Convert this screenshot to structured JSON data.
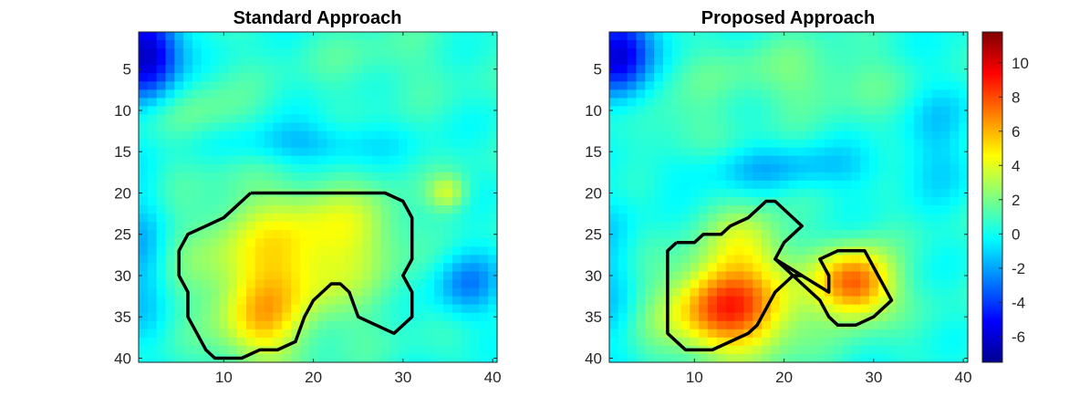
{
  "chart_data": [
    {
      "type": "heatmap",
      "title": "Standard Approach",
      "xlabel": "",
      "ylabel": "",
      "xlim": [
        0.5,
        40.5
      ],
      "ylim": [
        0.5,
        40.5
      ],
      "y_reversed": true,
      "xticks": [
        10,
        20,
        30,
        40
      ],
      "yticks": [
        5,
        10,
        15,
        20,
        25,
        30,
        35,
        40
      ],
      "grid": false,
      "blobs": [
        {
          "x": 1.5,
          "y": 3,
          "sx": 2.5,
          "sy": 4,
          "a": -7
        },
        {
          "x": 1,
          "y": 28,
          "sx": 2,
          "sy": 7,
          "a": -2
        },
        {
          "x": 18,
          "y": 14,
          "sx": 7,
          "sy": 2,
          "a": -2.2
        },
        {
          "x": 37,
          "y": 31,
          "sx": 2.5,
          "sy": 3,
          "a": -3
        },
        {
          "x": 17,
          "y": 28,
          "sx": 7,
          "sy": 6,
          "a": 4.5
        },
        {
          "x": 14,
          "y": 36,
          "sx": 3,
          "sy": 4,
          "a": 3.5
        },
        {
          "x": 25,
          "y": 24,
          "sx": 4,
          "sy": 3,
          "a": 1.5
        },
        {
          "x": 35,
          "y": 20,
          "sx": 1.5,
          "sy": 1.5,
          "a": 3
        },
        {
          "x": 8,
          "y": 11,
          "sx": 4,
          "sy": 3,
          "a": 1.5
        },
        {
          "x": 28,
          "y": 4,
          "sx": 6,
          "sy": 3,
          "a": 0.8
        }
      ],
      "contours": [
        [
          [
            13,
            20
          ],
          [
            28,
            20
          ],
          [
            30,
            21
          ],
          [
            31,
            23
          ],
          [
            31,
            28
          ],
          [
            30,
            30
          ],
          [
            31,
            32
          ],
          [
            31,
            35
          ],
          [
            29,
            37
          ],
          [
            27,
            36
          ],
          [
            25,
            35
          ],
          [
            24,
            32
          ],
          [
            23,
            31
          ],
          [
            22,
            31
          ],
          [
            20,
            33
          ],
          [
            19,
            35
          ],
          [
            18,
            38
          ],
          [
            16,
            39
          ],
          [
            14,
            39
          ],
          [
            12,
            40
          ],
          [
            9,
            40
          ],
          [
            8,
            39
          ],
          [
            7,
            37
          ],
          [
            6,
            35
          ],
          [
            6,
            32
          ],
          [
            5,
            30
          ],
          [
            5,
            27
          ],
          [
            6,
            25
          ],
          [
            8,
            24
          ],
          [
            10,
            23
          ],
          [
            12,
            21
          ],
          [
            13,
            20
          ]
        ]
      ]
    },
    {
      "type": "heatmap",
      "title": "Proposed Approach",
      "xlabel": "",
      "ylabel": "",
      "xlim": [
        0.5,
        40.5
      ],
      "ylim": [
        0.5,
        40.5
      ],
      "y_reversed": true,
      "xticks": [
        10,
        20,
        30,
        40
      ],
      "yticks": [
        5,
        10,
        15,
        20,
        25,
        30,
        35,
        40
      ],
      "grid": false,
      "blobs": [
        {
          "x": 1.5,
          "y": 3,
          "sx": 2.5,
          "sy": 4,
          "a": -6.5
        },
        {
          "x": 1,
          "y": 30,
          "sx": 2,
          "sy": 8,
          "a": -1.5
        },
        {
          "x": 20,
          "y": 17,
          "sx": 9,
          "sy": 2,
          "a": -1.8
        },
        {
          "x": 38,
          "y": 12,
          "sx": 2.5,
          "sy": 6,
          "a": -1.5
        },
        {
          "x": 14,
          "y": 34,
          "sx": 5,
          "sy": 4,
          "a": 8
        },
        {
          "x": 16,
          "y": 26,
          "sx": 3,
          "sy": 3,
          "a": 3
        },
        {
          "x": 28,
          "y": 31,
          "sx": 3,
          "sy": 3,
          "a": 7.5
        },
        {
          "x": 22,
          "y": 6,
          "sx": 8,
          "sy": 3,
          "a": 1.5
        },
        {
          "x": 8,
          "y": 12,
          "sx": 4,
          "sy": 3,
          "a": 1
        }
      ],
      "contours": [
        [
          [
            8,
            26
          ],
          [
            10,
            26
          ],
          [
            11,
            25
          ],
          [
            13,
            25
          ],
          [
            14,
            24
          ],
          [
            16,
            23
          ],
          [
            17,
            22
          ],
          [
            18,
            21
          ],
          [
            19,
            21
          ],
          [
            21,
            23
          ],
          [
            22,
            24
          ],
          [
            21,
            25
          ],
          [
            20,
            26
          ],
          [
            19,
            28
          ],
          [
            22,
            30
          ],
          [
            21,
            30
          ],
          [
            19,
            32
          ],
          [
            18,
            34
          ],
          [
            17,
            36
          ],
          [
            16,
            37
          ],
          [
            14,
            38
          ],
          [
            12,
            39
          ],
          [
            9,
            39
          ],
          [
            7,
            37
          ],
          [
            7,
            34
          ],
          [
            7,
            30
          ],
          [
            7,
            27
          ],
          [
            8,
            26
          ]
        ],
        [
          [
            19,
            28
          ],
          [
            22,
            30
          ],
          [
            25,
            32
          ],
          [
            25,
            30
          ],
          [
            24,
            28
          ],
          [
            26,
            27
          ],
          [
            29,
            27
          ],
          [
            30,
            29
          ],
          [
            31,
            31
          ],
          [
            32,
            33
          ],
          [
            30,
            35
          ],
          [
            28,
            36
          ],
          [
            26,
            36
          ],
          [
            25,
            35
          ],
          [
            24,
            33
          ],
          [
            22,
            31
          ],
          [
            19,
            28
          ]
        ]
      ]
    }
  ],
  "colorbar": {
    "min": -7.5,
    "max": 11.8,
    "ticks": [
      -6,
      -4,
      -2,
      0,
      2,
      4,
      6,
      8,
      10
    ],
    "colormap": "jet"
  }
}
